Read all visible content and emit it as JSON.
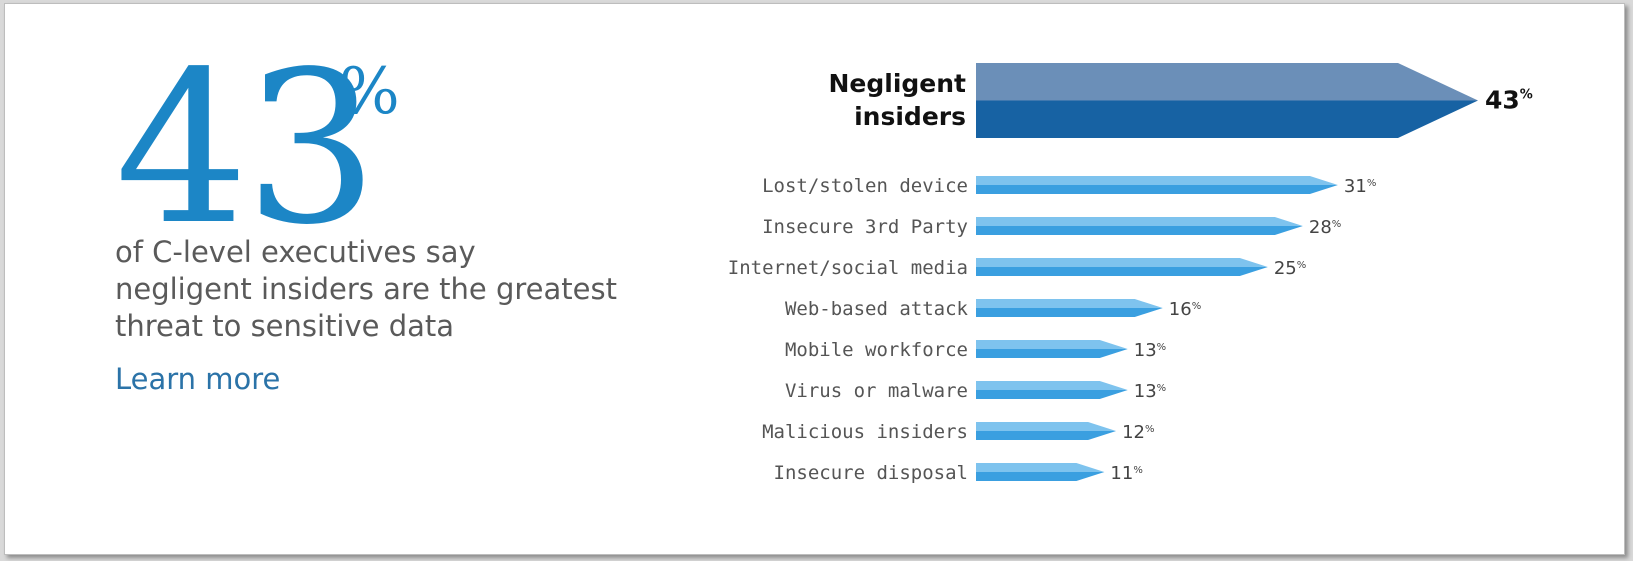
{
  "hero": {
    "number": "43",
    "percent_sign": "%",
    "caption_lines": [
      "of C-level executives say",
      "negligent insiders are the greatest",
      "threat to sensitive data"
    ],
    "link_label": "Learn more"
  },
  "colors": {
    "accent": "#1c86c6",
    "caption": "#5a5a5a",
    "link": "#2b73a8",
    "highlight_top": "#6b8fb8",
    "highlight_bottom": "#1762a3",
    "bar_top": "#7ec3ee",
    "bar_bottom": "#3a9fe0"
  },
  "chart_data": {
    "type": "bar",
    "orientation": "horizontal",
    "unit": "%",
    "categories": [
      "Negligent insiders",
      "Lost/stolen device",
      "Insecure 3rd Party",
      "Internet/social media",
      "Web-based attack",
      "Mobile workforce",
      "Virus or malware",
      "Malicious insiders",
      "Insecure disposal"
    ],
    "values": [
      43,
      31,
      28,
      25,
      16,
      13,
      13,
      12,
      11
    ],
    "highlighted": "Negligent insiders",
    "highlight_label_lines": [
      "Negligent",
      "insiders"
    ],
    "title": "",
    "xlabel": "",
    "ylabel": "",
    "xlim": [
      0,
      43
    ],
    "grid": false,
    "legend": "none"
  }
}
